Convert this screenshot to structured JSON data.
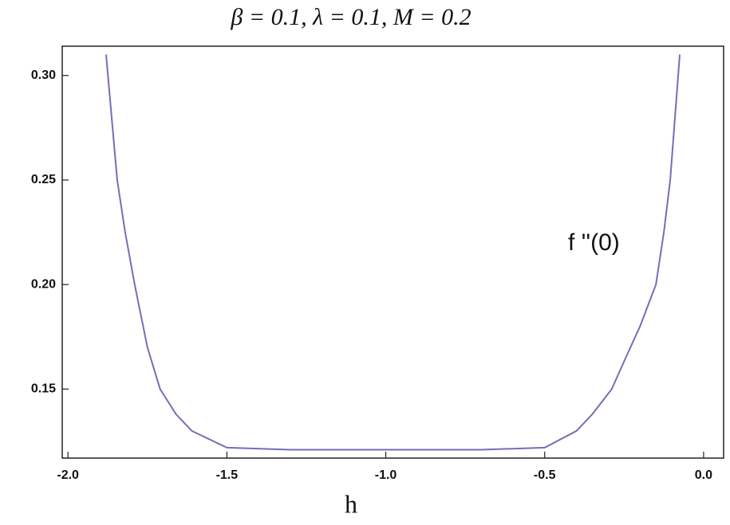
{
  "chart_data": {
    "type": "line",
    "title": "β = 0.1, λ = 0.1, M = 0.2",
    "x_label": "h",
    "annotation": "f ''(0)",
    "x": [
      -1.88,
      -1.845,
      -1.82,
      -1.79,
      -1.75,
      -1.71,
      -1.66,
      -1.61,
      -1.5,
      -1.3,
      -1.0,
      -0.7,
      -0.5,
      -0.4,
      -0.35,
      -0.289,
      -0.245,
      -0.2,
      -0.15,
      -0.125,
      -0.105,
      -0.075
    ],
    "series": [
      {
        "name": "f ''(0)",
        "color": "#7070b8",
        "values": [
          0.31,
          0.25,
          0.225,
          0.2,
          0.17,
          0.15,
          0.138,
          0.13,
          0.122,
          0.121,
          0.121,
          0.121,
          0.122,
          0.13,
          0.138,
          0.15,
          0.165,
          0.18,
          0.2,
          0.225,
          0.25,
          0.31
        ]
      }
    ],
    "xlim": [
      -2.018,
      0.063
    ],
    "ylim": [
      0.117,
      0.314
    ],
    "xticks": [
      {
        "value": -2.0,
        "label": "-2.0"
      },
      {
        "value": -1.5,
        "label": "-1.5"
      },
      {
        "value": -1.0,
        "label": "-1.0"
      },
      {
        "value": -0.5,
        "label": "-0.5"
      },
      {
        "value": 0,
        "label": "0.0"
      }
    ],
    "yticks": [
      {
        "value": 0.15,
        "label": "0.15"
      },
      {
        "value": 0.2,
        "label": "0.20"
      },
      {
        "value": 0.25,
        "label": "0.25"
      },
      {
        "value": 0.3,
        "label": "0.30"
      }
    ],
    "grid": false
  }
}
